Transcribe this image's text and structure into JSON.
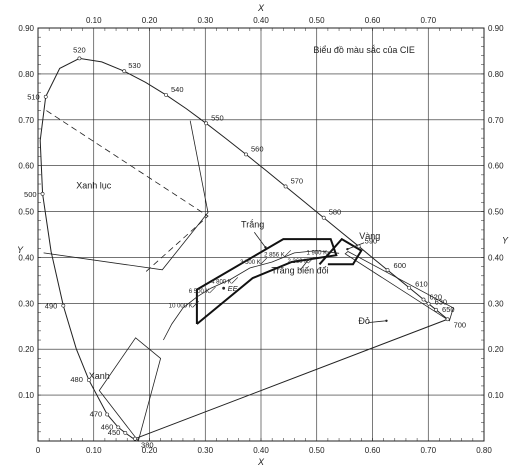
{
  "chart_data": {
    "type": "line",
    "title": "Biểu đồ màu sắc của CIE",
    "xlabel": "X",
    "ylabel": "Y",
    "xlim": [
      0,
      0.8
    ],
    "ylim": [
      0,
      0.9
    ],
    "x_ticks": [
      "0",
      "0.10",
      "0.20",
      "0.30",
      "0.40",
      "0.50",
      "0.60",
      "0.70",
      "0.80"
    ],
    "x_ticks_top": [
      "0.10",
      "0.20",
      "0.30",
      "0.40",
      "0.50",
      "0.60",
      "0.70"
    ],
    "y_ticks": [
      "0.10",
      "0.20",
      "0.30",
      "0.40",
      "0.50",
      "0.60",
      "0.70",
      "0.80",
      "0.90"
    ],
    "grid": true,
    "spectral_locus": [
      [
        0.1741,
        0.005
      ],
      [
        0.1738,
        0.0049
      ],
      [
        0.1733,
        0.0048
      ],
      [
        0.1726,
        0.0048
      ],
      [
        0.1714,
        0.0051
      ],
      [
        0.1689,
        0.0069
      ],
      [
        0.1644,
        0.0109
      ],
      [
        0.1566,
        0.0177
      ],
      [
        0.144,
        0.0297
      ],
      [
        0.1241,
        0.0578
      ],
      [
        0.0913,
        0.1327
      ],
      [
        0.0687,
        0.2007
      ],
      [
        0.0454,
        0.295
      ],
      [
        0.0235,
        0.4127
      ],
      [
        0.0082,
        0.5384
      ],
      [
        0.0039,
        0.6548
      ],
      [
        0.0139,
        0.7502
      ],
      [
        0.0389,
        0.812
      ],
      [
        0.0743,
        0.8338
      ],
      [
        0.1142,
        0.8262
      ],
      [
        0.1547,
        0.8059
      ],
      [
        0.1929,
        0.7816
      ],
      [
        0.2296,
        0.7543
      ],
      [
        0.2658,
        0.7243
      ],
      [
        0.3016,
        0.6923
      ],
      [
        0.3373,
        0.6589
      ],
      [
        0.3731,
        0.6245
      ],
      [
        0.4087,
        0.5896
      ],
      [
        0.4441,
        0.5547
      ],
      [
        0.4788,
        0.5202
      ],
      [
        0.5125,
        0.4866
      ],
      [
        0.5448,
        0.4544
      ],
      [
        0.5752,
        0.4242
      ],
      [
        0.6029,
        0.3965
      ],
      [
        0.627,
        0.3725
      ],
      [
        0.6482,
        0.3514
      ],
      [
        0.6658,
        0.334
      ],
      [
        0.6801,
        0.3197
      ],
      [
        0.6915,
        0.3083
      ],
      [
        0.7006,
        0.2993
      ],
      [
        0.714,
        0.2859
      ],
      [
        0.7347,
        0.2653
      ]
    ],
    "wavelength_labels": [
      {
        "label": "380",
        "x": 0.1741,
        "y": 0.005
      },
      {
        "label": "450",
        "x": 0.1566,
        "y": 0.0177
      },
      {
        "label": "460",
        "x": 0.144,
        "y": 0.0297
      },
      {
        "label": "470",
        "x": 0.1241,
        "y": 0.0578
      },
      {
        "label": "480",
        "x": 0.0913,
        "y": 0.1327
      },
      {
        "label": "490",
        "x": 0.0454,
        "y": 0.295
      },
      {
        "label": "500",
        "x": 0.0082,
        "y": 0.5384
      },
      {
        "label": "510",
        "x": 0.0139,
        "y": 0.7502
      },
      {
        "label": "520",
        "x": 0.0743,
        "y": 0.8338
      },
      {
        "label": "530",
        "x": 0.1547,
        "y": 0.8059
      },
      {
        "label": "540",
        "x": 0.2296,
        "y": 0.7543
      },
      {
        "label": "550",
        "x": 0.3016,
        "y": 0.6923
      },
      {
        "label": "560",
        "x": 0.3731,
        "y": 0.6245
      },
      {
        "label": "570",
        "x": 0.4441,
        "y": 0.5547
      },
      {
        "label": "580",
        "x": 0.5125,
        "y": 0.4866
      },
      {
        "label": "590",
        "x": 0.5752,
        "y": 0.4242
      },
      {
        "label": "600",
        "x": 0.627,
        "y": 0.3725
      },
      {
        "label": "610",
        "x": 0.6658,
        "y": 0.334
      },
      {
        "label": "620",
        "x": 0.6915,
        "y": 0.3083
      },
      {
        "label": "630",
        "x": 0.7006,
        "y": 0.2993
      },
      {
        "label": "650",
        "x": 0.714,
        "y": 0.2859
      },
      {
        "label": "700",
        "x": 0.7347,
        "y": 0.2653
      }
    ],
    "blackbody_locus": [
      [
        0.225,
        0.22
      ],
      [
        0.24,
        0.255
      ],
      [
        0.26,
        0.29
      ],
      [
        0.285,
        0.314
      ],
      [
        0.31,
        0.333
      ],
      [
        0.345,
        0.352
      ],
      [
        0.38,
        0.377
      ],
      [
        0.42,
        0.39
      ],
      [
        0.46,
        0.41
      ],
      [
        0.5,
        0.415
      ],
      [
        0.54,
        0.409
      ]
    ],
    "temperature_labels": [
      {
        "label": "10 000 K",
        "x": 0.283,
        "y": 0.298
      },
      {
        "label": "6 500 K",
        "x": 0.313,
        "y": 0.329
      },
      {
        "label": "4 800 K",
        "x": 0.353,
        "y": 0.35
      },
      {
        "label": "3 500 K",
        "x": 0.405,
        "y": 0.392
      },
      {
        "label": "2 856 K",
        "x": 0.448,
        "y": 0.409
      },
      {
        "label": "2 360 K",
        "x": 0.49,
        "y": 0.394
      },
      {
        "label": "1 900 K",
        "x": 0.524,
        "y": 0.413
      }
    ],
    "ee_point": {
      "label": "EE",
      "x": 0.333,
      "y": 0.333
    },
    "regions": [
      {
        "label": "Xanh lục",
        "x": 0.1,
        "y": 0.55
      },
      {
        "label": "Xanh",
        "x": 0.11,
        "y": 0.135
      },
      {
        "label": "Trắng",
        "x": 0.385,
        "y": 0.465
      },
      {
        "label": "Trắng biến đổi",
        "x": 0.47,
        "y": 0.365
      },
      {
        "label": "Vàng",
        "x": 0.595,
        "y": 0.44
      },
      {
        "label": "Đỏ",
        "x": 0.585,
        "y": 0.255
      }
    ],
    "green_region": [
      [
        0.01,
        0.41
      ],
      [
        0.223,
        0.373
      ],
      [
        0.305,
        0.498
      ],
      [
        0.273,
        0.698
      ]
    ],
    "green_dashed": [
      [
        0.015,
        0.72
      ],
      [
        0.305,
        0.49
      ],
      [
        0.19,
        0.365
      ]
    ],
    "blue_region": [
      [
        0.11,
        0.11
      ],
      [
        0.175,
        0.225
      ],
      [
        0.22,
        0.18
      ],
      [
        0.18,
        0.0
      ]
    ],
    "red_region": [
      [
        0.556,
        0.413
      ],
      [
        0.745,
        0.29
      ],
      [
        0.738,
        0.262
      ],
      [
        0.551,
        0.408
      ]
    ],
    "white_region": [
      [
        0.285,
        0.255
      ],
      [
        0.285,
        0.33
      ],
      [
        0.44,
        0.44
      ],
      [
        0.525,
        0.44
      ],
      [
        0.535,
        0.405
      ],
      [
        0.455,
        0.39
      ],
      [
        0.385,
        0.355
      ],
      [
        0.285,
        0.255
      ]
    ],
    "variable_white": [
      [
        0.505,
        0.385
      ],
      [
        0.545,
        0.44
      ],
      [
        0.58,
        0.415
      ],
      [
        0.565,
        0.385
      ],
      [
        0.52,
        0.385
      ]
    ]
  }
}
